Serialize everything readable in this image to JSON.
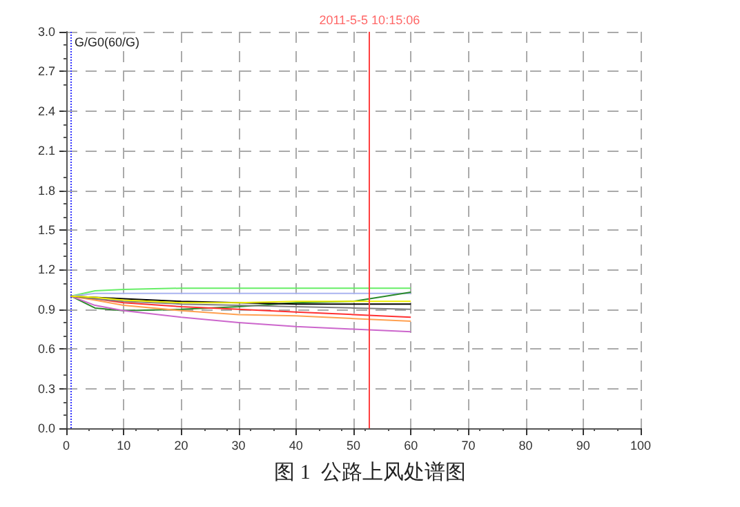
{
  "chart_data": {
    "type": "line",
    "title": "图 1  公路上风处谱图",
    "ylabel": "G/G0(60/G)",
    "x": [
      0.8,
      5,
      10,
      20,
      30,
      40,
      50,
      60
    ],
    "series": [
      {
        "color": "#66ee66",
        "values": [
          1.0,
          1.04,
          1.05,
          1.06,
          1.06,
          1.06,
          1.06,
          1.06
        ]
      },
      {
        "color": "#aab4f0",
        "values": [
          1.0,
          1.02,
          1.02,
          1.02,
          1.02,
          1.02,
          1.02,
          1.02
        ]
      },
      {
        "color": "#2a8a2a",
        "values": [
          1.0,
          0.91,
          0.89,
          0.9,
          0.92,
          0.95,
          0.96,
          1.03
        ]
      },
      {
        "color": "#cc66cc",
        "values": [
          1.0,
          0.93,
          0.89,
          0.84,
          0.8,
          0.77,
          0.75,
          0.73
        ]
      },
      {
        "color": "#ffa050",
        "values": [
          1.0,
          0.97,
          0.93,
          0.89,
          0.86,
          0.85,
          0.83,
          0.81
        ]
      },
      {
        "color": "#ff3030",
        "values": [
          1.0,
          0.98,
          0.95,
          0.92,
          0.9,
          0.88,
          0.86,
          0.84
        ]
      },
      {
        "color": "#808080",
        "values": [
          1.0,
          0.98,
          0.96,
          0.94,
          0.93,
          0.92,
          0.91,
          0.9
        ]
      },
      {
        "color": "#000000",
        "values": [
          1.0,
          0.99,
          0.98,
          0.96,
          0.95,
          0.94,
          0.94,
          0.94
        ]
      },
      {
        "color": "#eeee00",
        "values": [
          1.0,
          0.99,
          0.97,
          0.95,
          0.95,
          0.96,
          0.96,
          0.96
        ]
      }
    ],
    "xlim": [
      0,
      100
    ],
    "xticks": [
      0,
      10,
      20,
      30,
      40,
      50,
      60,
      70,
      80,
      90,
      100
    ],
    "ylim": [
      0,
      3.0
    ],
    "yticks": [
      {
        "value": 0,
        "label": "0.0"
      },
      0.3,
      0.6,
      0.9,
      1.2,
      1.5,
      1.8,
      2.1,
      2.4,
      2.7,
      {
        "value": 3.0,
        "label": "3.0"
      }
    ],
    "ref_lines": [
      {
        "axis": "x",
        "value": 52.8,
        "label": null,
        "color": "#ff4040",
        "line_style": "solid"
      },
      {
        "axis": "x",
        "value": 0.7,
        "label": null,
        "color": "#3333ff",
        "line_style": "dotted"
      }
    ],
    "annotations": [
      {
        "text": "2011-5-5 10:15:06",
        "x": 52.8,
        "y": 3.0
      }
    ],
    "grid": true,
    "marker": "none",
    "line_style": "solid"
  }
}
